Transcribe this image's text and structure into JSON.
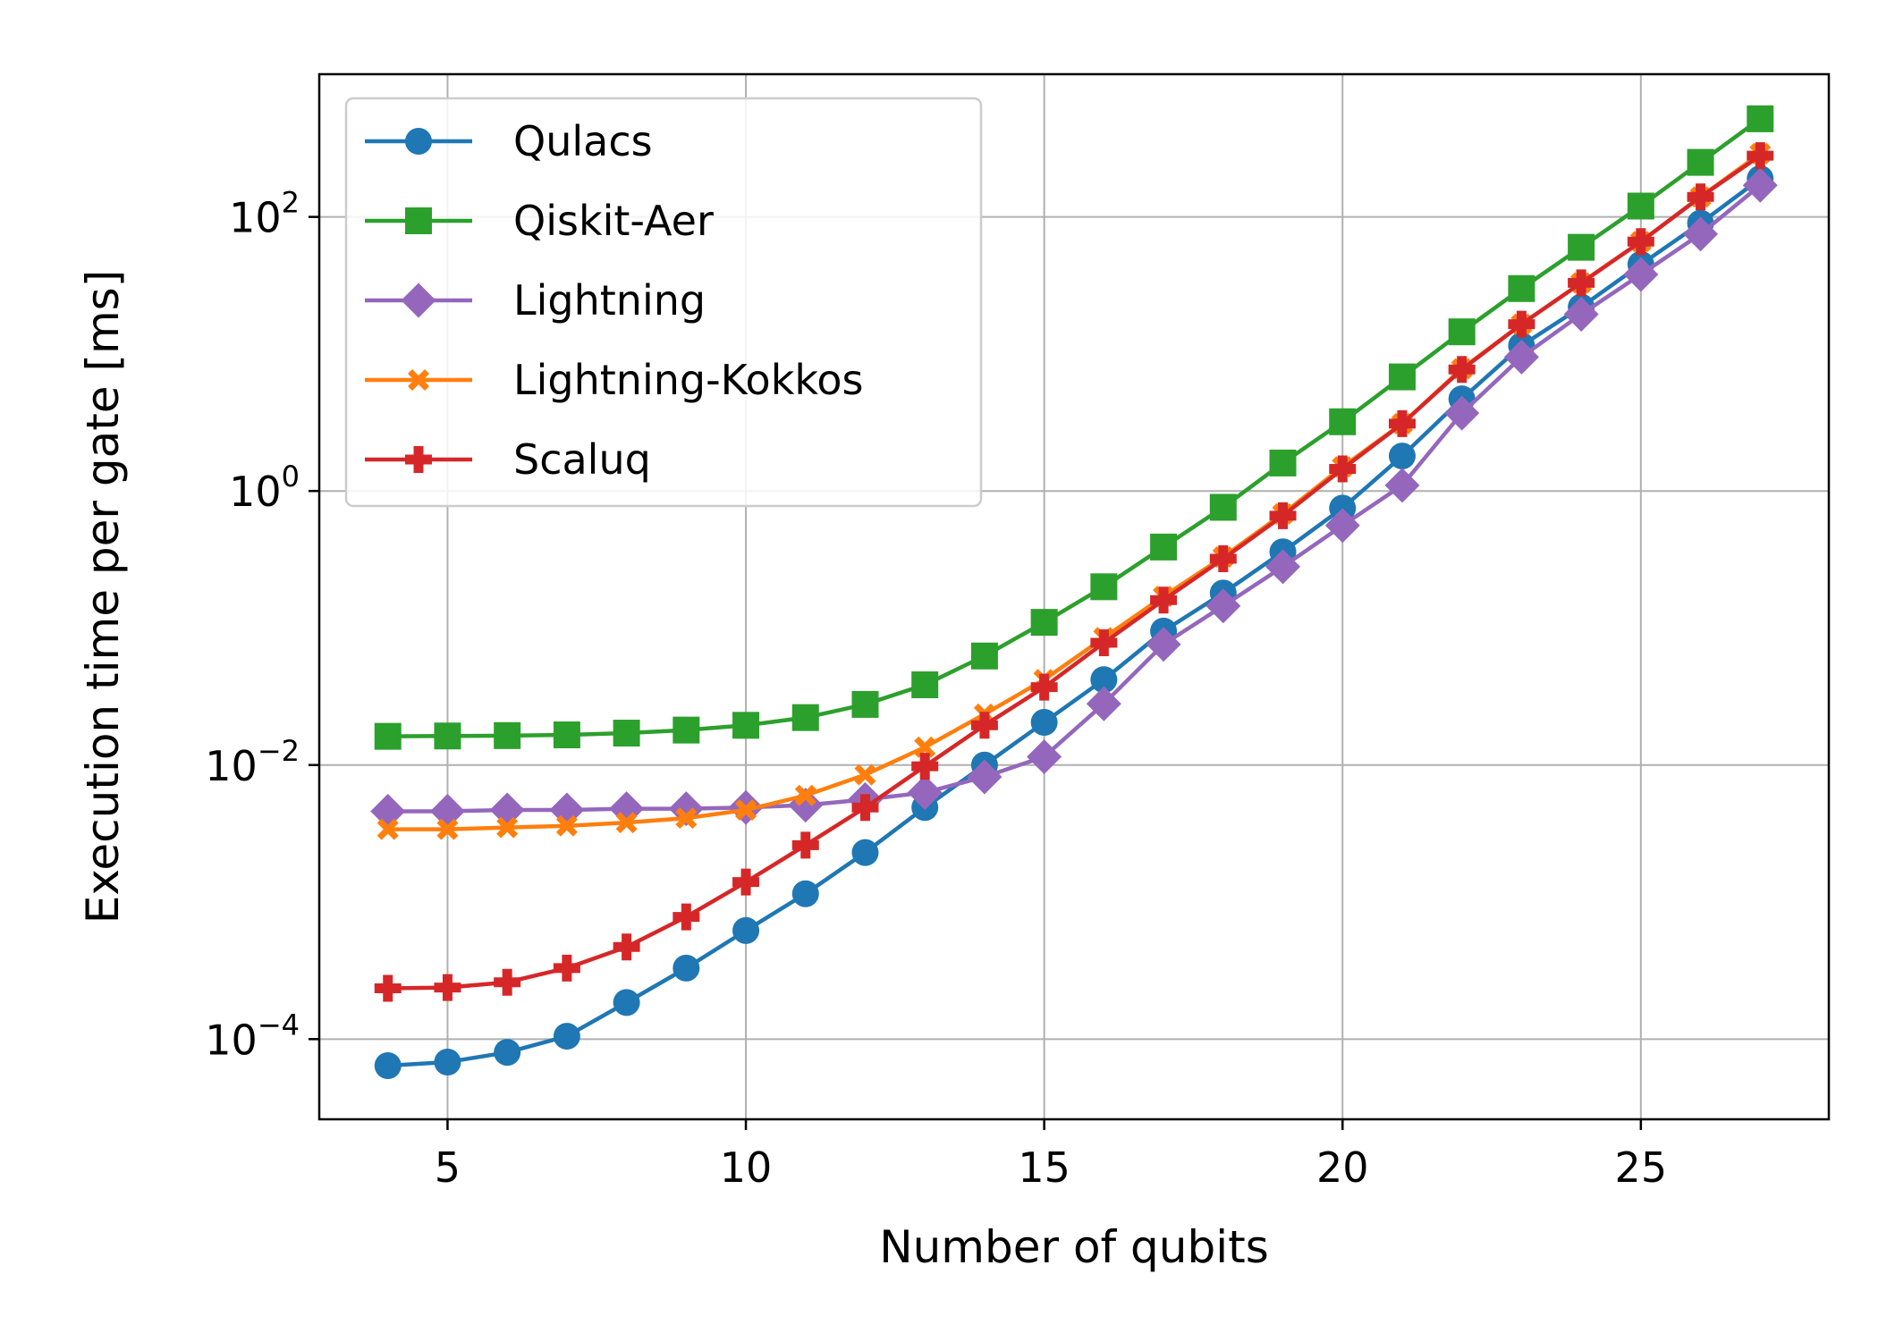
{
  "chart_data": {
    "type": "line",
    "title": "",
    "xlabel": "Number of qubits",
    "ylabel": "Execution time per gate [ms]",
    "xlim": [
      2.85,
      28.15
    ],
    "ylim": [
      2.6e-05,
      1100
    ],
    "y_scale": "log",
    "grid": true,
    "legend_position": "top-left",
    "x_ticks": [
      5,
      10,
      15,
      20,
      25
    ],
    "x_tick_labels": [
      "5",
      "10",
      "15",
      "20",
      "25"
    ],
    "y_ticks": [
      0.0001,
      0.01,
      1,
      100
    ],
    "y_tick_labels": [
      {
        "base": "10",
        "exp": "−4"
      },
      {
        "base": "10",
        "exp": "−2"
      },
      {
        "base": "10",
        "exp": "0"
      },
      {
        "base": "10",
        "exp": "2"
      }
    ],
    "x": [
      4,
      5,
      6,
      7,
      8,
      9,
      10,
      11,
      12,
      13,
      14,
      15,
      16,
      17,
      18,
      19,
      20,
      21,
      22,
      23,
      24,
      25,
      26,
      27
    ],
    "series": [
      {
        "name": "Qiskit-Aer",
        "color": "#2ca02c",
        "marker": "square",
        "values": [
          0.0162,
          0.0163,
          0.0164,
          0.0166,
          0.0171,
          0.018,
          0.0195,
          0.0222,
          0.0277,
          0.0385,
          0.0625,
          0.11,
          0.2,
          0.39,
          0.76,
          1.6,
          3.2,
          6.8,
          14.5,
          30,
          60,
          120,
          250,
          520
        ]
      },
      {
        "name": "Qulacs",
        "color": "#1f77b4",
        "marker": "circle",
        "values": [
          6.4e-05,
          6.8e-05,
          8e-05,
          0.000105,
          0.000185,
          0.00033,
          0.00062,
          0.00115,
          0.0023,
          0.0049,
          0.01,
          0.0205,
          0.042,
          0.095,
          0.18,
          0.36,
          0.75,
          1.8,
          4.7,
          11.5,
          22,
          45,
          90,
          190
        ]
      },
      {
        "name": "Lightning",
        "color": "#9467bd",
        "marker": "diamond",
        "values": [
          0.0046,
          0.0046,
          0.0047,
          0.0047,
          0.0048,
          0.0048,
          0.0049,
          0.0051,
          0.0056,
          0.0063,
          0.0082,
          0.0115,
          0.028,
          0.076,
          0.145,
          0.28,
          0.56,
          1.1,
          3.7,
          9.5,
          19.5,
          38,
          75,
          170
        ]
      },
      {
        "name": "Lightning-Kokkos",
        "color": "#ff7f0e",
        "marker": "x",
        "values": [
          0.0034,
          0.0034,
          0.0035,
          0.0036,
          0.0038,
          0.0041,
          0.0047,
          0.006,
          0.0085,
          0.0135,
          0.0235,
          0.042,
          0.085,
          0.17,
          0.33,
          0.68,
          1.5,
          3.1,
          7.8,
          16.5,
          33,
          66,
          140,
          290
        ]
      },
      {
        "name": "Scaluq",
        "color": "#d62728",
        "marker": "plus",
        "values": [
          0.000235,
          0.000238,
          0.00026,
          0.00033,
          0.00047,
          0.00078,
          0.0014,
          0.0026,
          0.0049,
          0.0098,
          0.0195,
          0.037,
          0.078,
          0.16,
          0.32,
          0.66,
          1.45,
          3.1,
          7.7,
          16.5,
          33,
          66,
          140,
          280
        ]
      }
    ],
    "legend_order": [
      "Qulacs",
      "Qiskit-Aer",
      "Lightning",
      "Lightning-Kokkos",
      "Scaluq"
    ]
  }
}
